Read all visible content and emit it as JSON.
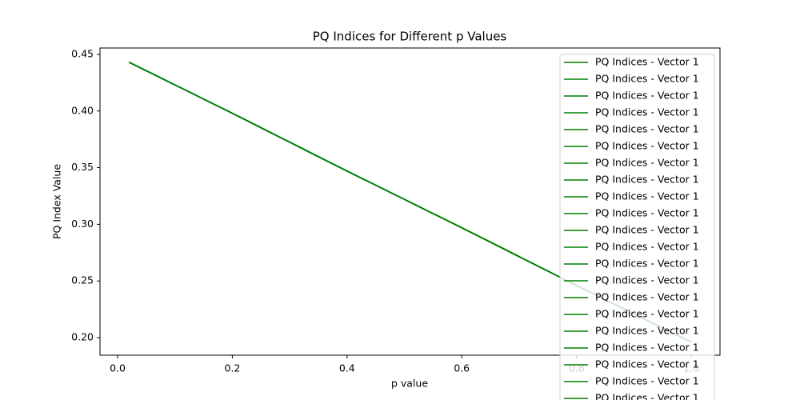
{
  "chart_data": {
    "type": "line",
    "title": "PQ Indices for Different p Values",
    "xlabel": "p value",
    "ylabel": "PQ Index Value",
    "x": [
      0.02,
      0.2,
      0.4,
      0.6,
      0.8,
      1.0
    ],
    "series": [
      {
        "name": "PQ Indices - Vector 1",
        "color": "#008000",
        "values": [
          0.443,
          0.398,
          0.347,
          0.297,
          0.246,
          0.196
        ]
      },
      {
        "name": "PQ Indices - Vector 1",
        "color": "#008000",
        "values": [
          0.443,
          0.398,
          0.347,
          0.297,
          0.246,
          0.196
        ]
      },
      {
        "name": "PQ Indices - Vector 1",
        "color": "#008000",
        "values": [
          0.443,
          0.398,
          0.347,
          0.297,
          0.246,
          0.196
        ]
      },
      {
        "name": "PQ Indices - Vector 1",
        "color": "#008000",
        "values": [
          0.443,
          0.398,
          0.347,
          0.297,
          0.246,
          0.196
        ]
      },
      {
        "name": "PQ Indices - Vector 1",
        "color": "#008000",
        "values": [
          0.443,
          0.398,
          0.347,
          0.297,
          0.246,
          0.196
        ]
      },
      {
        "name": "PQ Indices - Vector 1",
        "color": "#008000",
        "values": [
          0.443,
          0.398,
          0.347,
          0.297,
          0.246,
          0.196
        ]
      },
      {
        "name": "PQ Indices - Vector 1",
        "color": "#008000",
        "values": [
          0.443,
          0.398,
          0.347,
          0.297,
          0.246,
          0.196
        ]
      },
      {
        "name": "PQ Indices - Vector 1",
        "color": "#008000",
        "values": [
          0.443,
          0.398,
          0.347,
          0.297,
          0.246,
          0.196
        ]
      },
      {
        "name": "PQ Indices - Vector 1",
        "color": "#008000",
        "values": [
          0.443,
          0.398,
          0.347,
          0.297,
          0.246,
          0.196
        ]
      },
      {
        "name": "PQ Indices - Vector 1",
        "color": "#008000",
        "values": [
          0.443,
          0.398,
          0.347,
          0.297,
          0.246,
          0.196
        ]
      },
      {
        "name": "PQ Indices - Vector 1",
        "color": "#008000",
        "values": [
          0.443,
          0.398,
          0.347,
          0.297,
          0.246,
          0.196
        ]
      },
      {
        "name": "PQ Indices - Vector 1",
        "color": "#008000",
        "values": [
          0.443,
          0.398,
          0.347,
          0.297,
          0.246,
          0.196
        ]
      },
      {
        "name": "PQ Indices - Vector 1",
        "color": "#008000",
        "values": [
          0.443,
          0.398,
          0.347,
          0.297,
          0.246,
          0.196
        ]
      },
      {
        "name": "PQ Indices - Vector 1",
        "color": "#008000",
        "values": [
          0.443,
          0.398,
          0.347,
          0.297,
          0.246,
          0.196
        ]
      },
      {
        "name": "PQ Indices - Vector 1",
        "color": "#008000",
        "values": [
          0.443,
          0.398,
          0.347,
          0.297,
          0.246,
          0.196
        ]
      },
      {
        "name": "PQ Indices - Vector 1",
        "color": "#008000",
        "values": [
          0.443,
          0.398,
          0.347,
          0.297,
          0.246,
          0.196
        ]
      },
      {
        "name": "PQ Indices - Vector 1",
        "color": "#008000",
        "values": [
          0.443,
          0.398,
          0.347,
          0.297,
          0.246,
          0.196
        ]
      },
      {
        "name": "PQ Indices - Vector 1",
        "color": "#008000",
        "values": [
          0.443,
          0.398,
          0.347,
          0.297,
          0.246,
          0.196
        ]
      },
      {
        "name": "PQ Indices - Vector 1",
        "color": "#008000",
        "values": [
          0.443,
          0.398,
          0.347,
          0.297,
          0.246,
          0.196
        ]
      },
      {
        "name": "PQ Indices - Vector 1",
        "color": "#008000",
        "values": [
          0.443,
          0.398,
          0.347,
          0.297,
          0.246,
          0.196
        ]
      },
      {
        "name": "PQ Indices - Vector 1",
        "color": "#008000",
        "values": [
          0.443,
          0.398,
          0.347,
          0.297,
          0.246,
          0.196
        ]
      }
    ],
    "xlim": [
      -0.0307,
      1.0502
    ],
    "xticks": [
      {
        "value": 0,
        "label": "0.0"
      },
      0.2,
      0.4,
      0.6,
      0.8,
      {
        "value": 1,
        "label": "1.0"
      }
    ],
    "ylim": [
      0.1845,
      0.4556
    ],
    "yticks": [
      {
        "value": 0.2,
        "label": "0.20"
      },
      0.25,
      {
        "value": 0.3,
        "label": "0.30"
      },
      0.35,
      {
        "value": 0.4,
        "label": "0.40"
      },
      0.45
    ],
    "grid": false,
    "legend": "upper right"
  }
}
